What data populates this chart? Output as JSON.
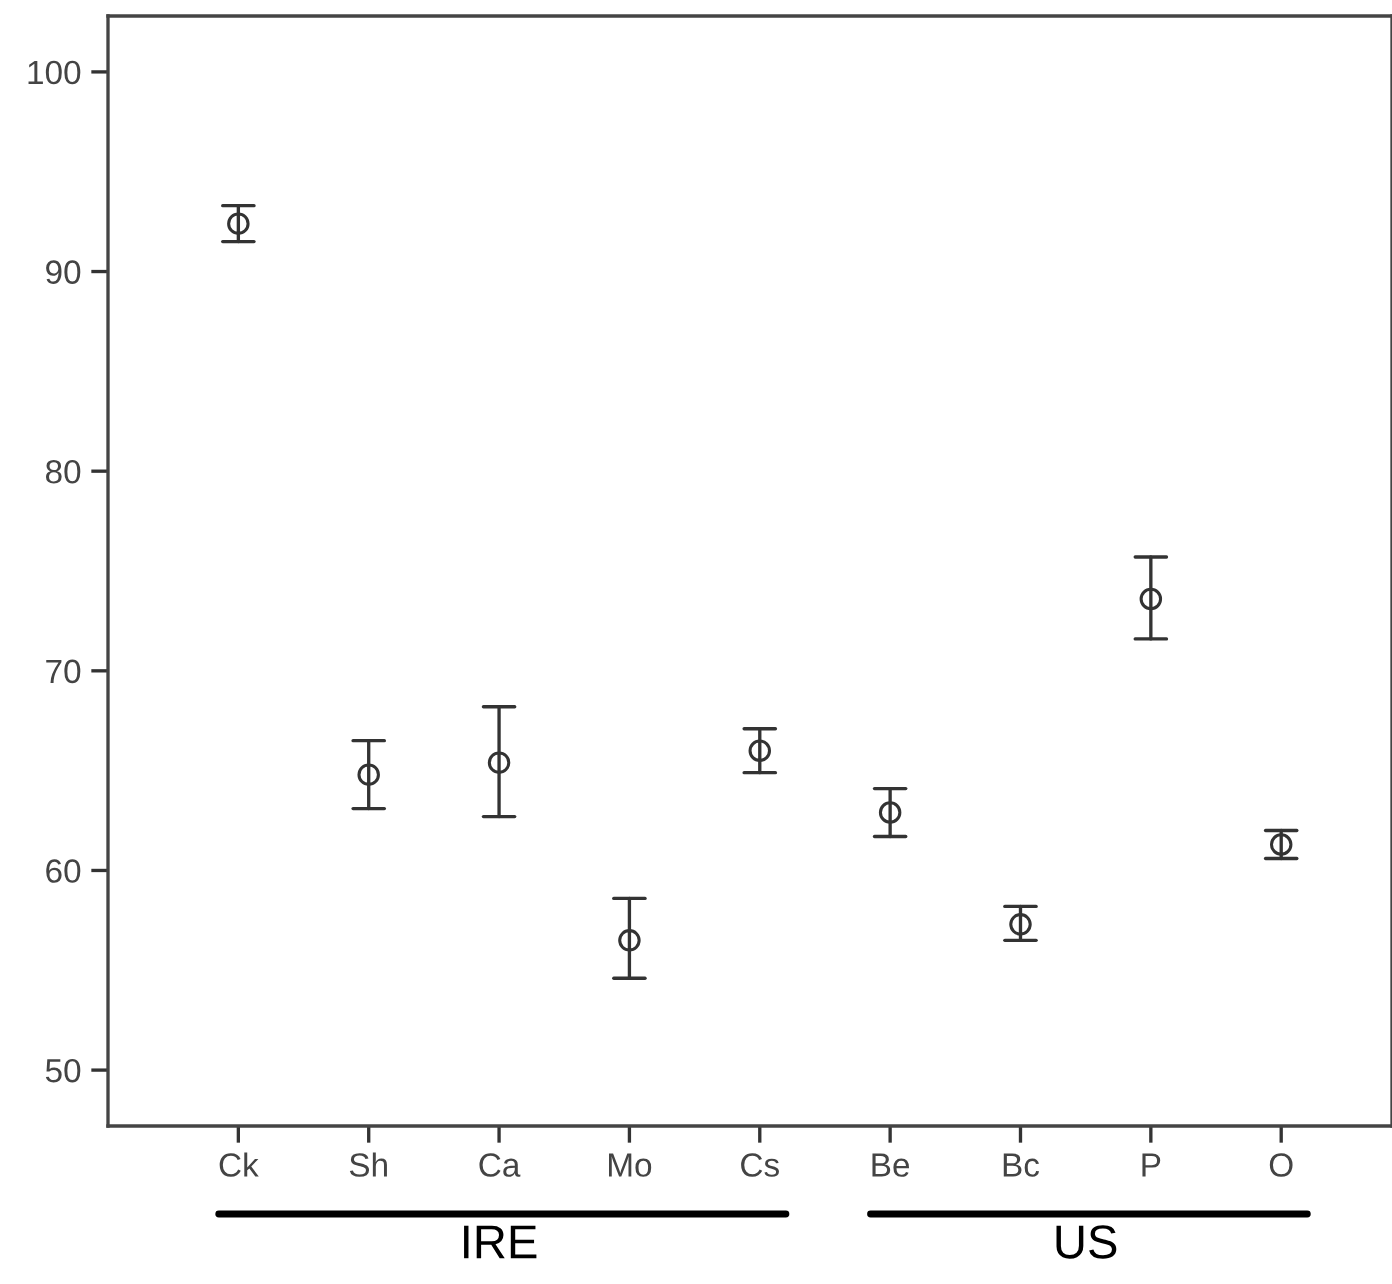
{
  "chart_data": {
    "type": "scatter",
    "categories": [
      "Ck",
      "Sh",
      "Ca",
      "Mo",
      "Cs",
      "Be",
      "Bc",
      "P",
      "O"
    ],
    "series": [
      {
        "color": "#333333",
        "values": [
          92.4,
          64.8,
          65.4,
          56.5,
          66.0,
          62.9,
          57.3,
          73.6,
          61.3
        ],
        "errors": [
          [
            91.5,
            93.3
          ],
          [
            63.1,
            66.5
          ],
          [
            62.7,
            68.2
          ],
          [
            54.6,
            58.6
          ],
          [
            64.9,
            67.1
          ],
          [
            61.7,
            64.1
          ],
          [
            56.5,
            58.2
          ],
          [
            71.6,
            75.7
          ],
          [
            60.6,
            62.0
          ]
        ]
      }
    ],
    "ylim": [
      47.2,
      102.8
    ],
    "yticks": [
      50,
      60,
      70,
      80,
      90,
      100
    ],
    "marker": "circle",
    "grid": false,
    "legend": false,
    "annotations": [
      "IRE",
      "US"
    ]
  }
}
